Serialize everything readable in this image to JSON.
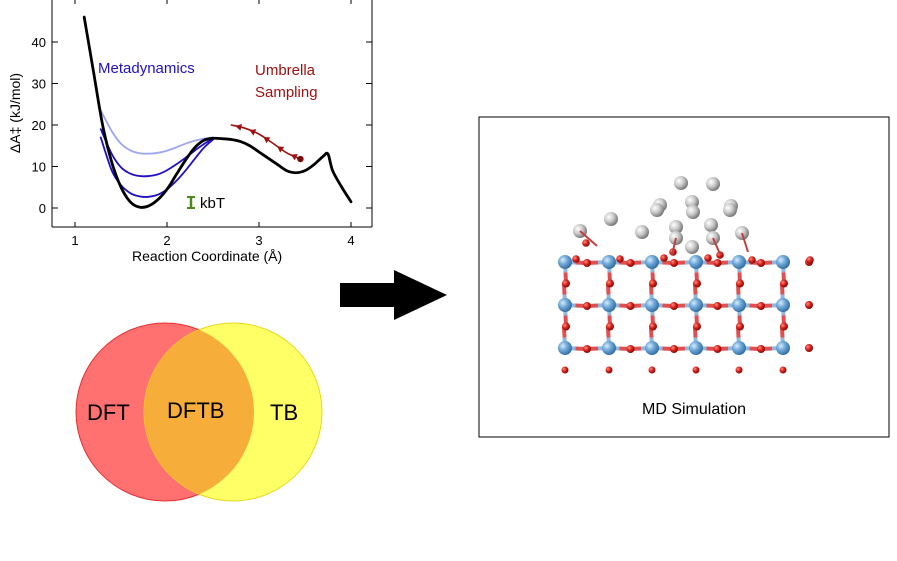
{
  "chart": {
    "ylabel": "ΔA‡ (kJ/mol)",
    "xlabel": "Reaction Coordinate (Å)",
    "xticks": [
      "1",
      "2",
      "3",
      "4"
    ],
    "yticks": [
      "0",
      "10",
      "20",
      "30",
      "40"
    ],
    "label_metadynamics": "Metadynamics",
    "label_umbrella_line1": "Umbrella",
    "label_umbrella_line2": "Sampling",
    "label_kbt": "kbT",
    "colors": {
      "main_curve": "#000000",
      "metadynamics": "#1f10c8",
      "metadynamics_light": "#9da6f2",
      "umbrella": "#a01010",
      "kbt": "#4a8a1a"
    }
  },
  "chart_data": {
    "type": "line",
    "xlabel": "Reaction Coordinate (Å)",
    "ylabel": "ΔA‡ (kJ/mol)",
    "xlim": [
      0.9,
      4.2
    ],
    "ylim": [
      -3,
      48
    ],
    "series": [
      {
        "x": [
          1.1,
          1.2,
          1.3,
          1.4,
          1.5,
          1.6,
          1.7,
          1.8,
          1.9,
          2.0,
          2.1,
          2.2,
          2.3,
          2.4,
          2.5,
          2.6,
          2.7,
          2.8,
          2.9,
          3.0,
          3.1,
          3.2,
          3.3,
          3.4,
          3.5,
          3.6,
          3.7,
          3.75,
          3.8,
          3.9,
          4.0
        ],
        "values": [
          46,
          33,
          20,
          11,
          5,
          1.5,
          0.2,
          0.5,
          2,
          4.5,
          8,
          11.5,
          14.5,
          16.3,
          16.8,
          16.7,
          16.5,
          16,
          15,
          13.5,
          12,
          10.5,
          9,
          8.5,
          9,
          10.5,
          12.5,
          13,
          9,
          5,
          1.5
        ]
      },
      {
        "x": [
          1.28,
          1.4,
          1.5,
          1.6,
          1.7,
          1.8,
          1.9,
          2.0,
          2.1,
          2.2,
          2.3,
          2.4,
          2.5
        ],
        "values": [
          17,
          9,
          5.5,
          3.6,
          2.8,
          2.7,
          3.2,
          4.5,
          6.5,
          9,
          11.8,
          14.5,
          16.5
        ]
      },
      {
        "x": [
          1.28,
          1.4,
          1.5,
          1.6,
          1.7,
          1.8,
          1.9,
          2.0,
          2.1,
          2.2,
          2.3,
          2.4,
          2.5
        ],
        "values": [
          19,
          13,
          9.8,
          8.3,
          7.7,
          7.7,
          8.1,
          9.1,
          10.5,
          12.1,
          13.8,
          15.4,
          16.7
        ]
      },
      {
        "x": [
          1.28,
          1.4,
          1.5,
          1.6,
          1.7,
          1.8,
          1.9,
          2.0,
          2.1,
          2.2,
          2.3,
          2.4,
          2.5
        ],
        "values": [
          23.5,
          18.5,
          15.5,
          13.9,
          13.2,
          13.1,
          13.3,
          13.8,
          14.6,
          15.5,
          16.2,
          16.7,
          17
        ]
      },
      {
        "x": [
          3.45,
          3.3,
          3.15,
          3.0,
          2.85,
          2.7
        ],
        "values": [
          11.8,
          13.3,
          15.6,
          17.8,
          19.2,
          20
        ]
      }
    ]
  },
  "venn": {
    "left": "DFT",
    "center": "DFTB",
    "right": "TB",
    "colors": {
      "left": "#ff7070",
      "right": "#ffff66",
      "overlap": "#f7ad3a"
    }
  },
  "md": {
    "caption": "MD Simulation",
    "colors": {
      "metal": "#6fa8d8",
      "oxygen": "#d8201a",
      "adsorbate": "#c8c8c8"
    }
  }
}
